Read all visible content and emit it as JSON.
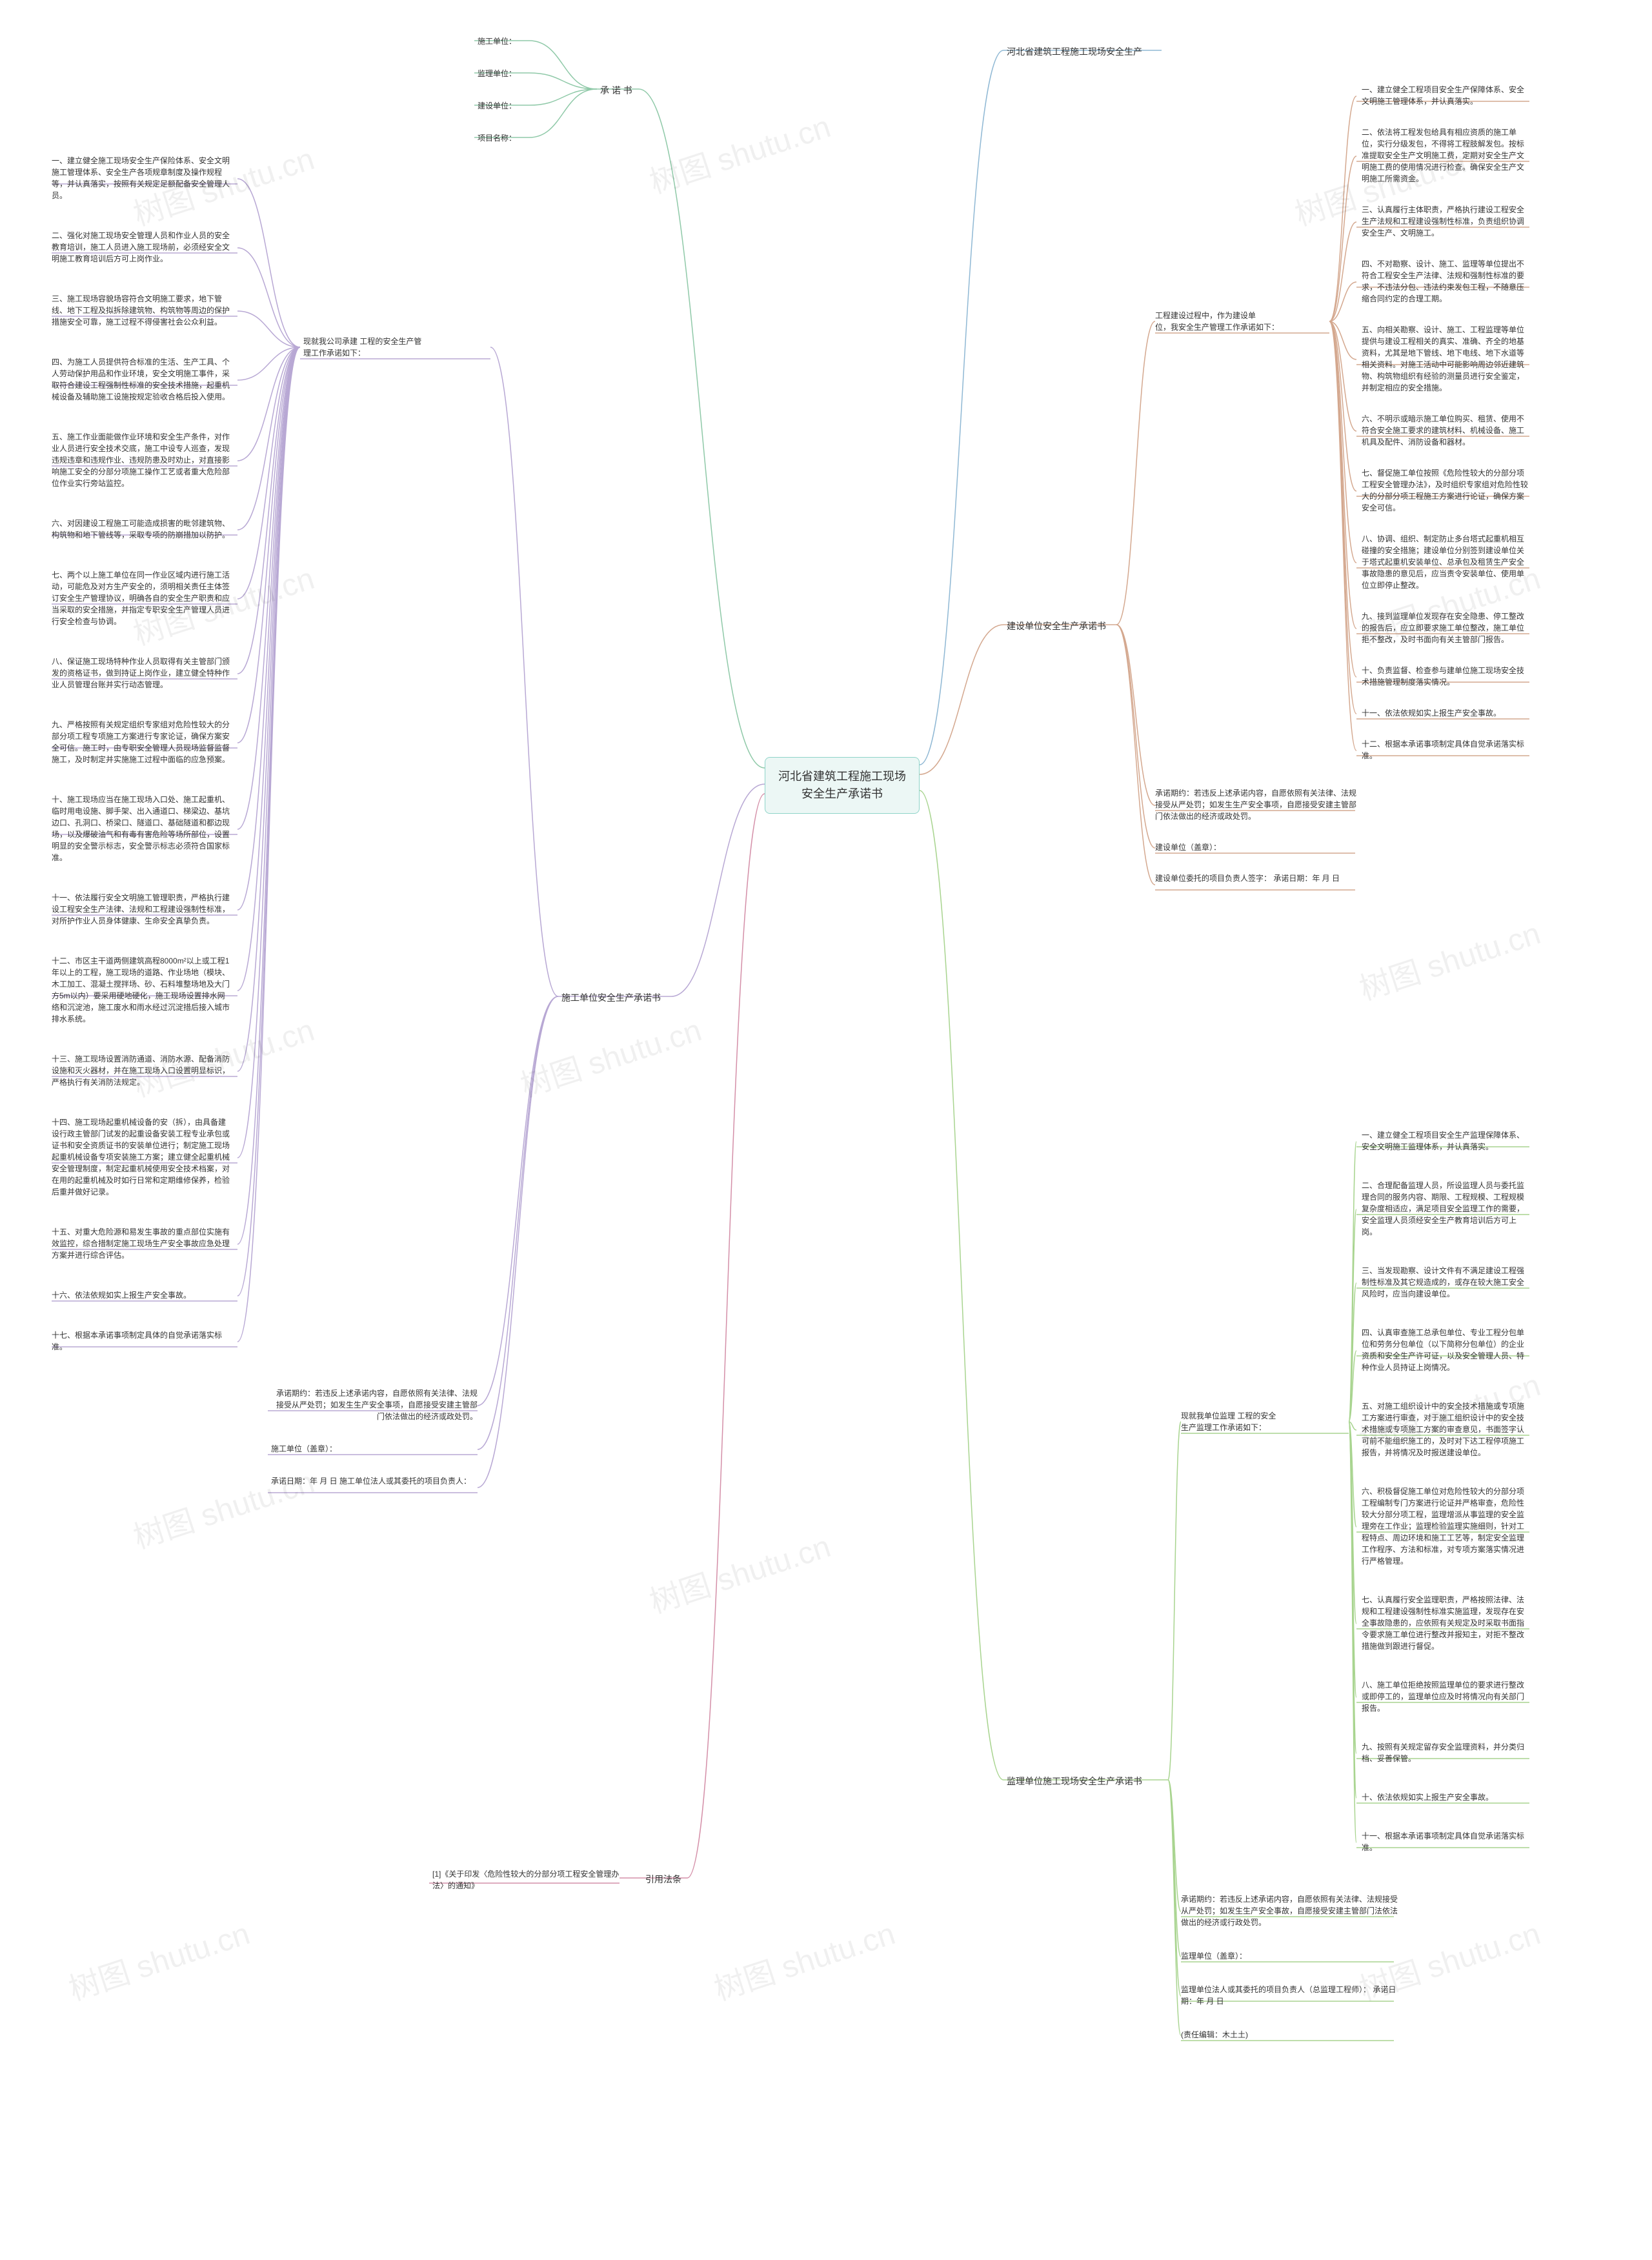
{
  "colors": {
    "bg": "#ffffff",
    "centerBg": "#ecf7f5",
    "centerBorder": "#8fd4c9",
    "text": "#333333",
    "line1": "#8fc9a8",
    "line2": "#8fb8d4",
    "line3": "#d4a88f",
    "line4": "#b8a8d4",
    "line5": "#d48fa8",
    "line6": "#a8d48f",
    "watermark": "rgba(0,0,0,0.06)"
  },
  "center": {
    "line1": "河北省建筑工程施工现场",
    "line2": "安全生产承诺书"
  },
  "watermarkText": "树图 shutu.cn",
  "b1": {
    "title": "承 诺 书",
    "c": [
      "施工单位：",
      "监理单位：",
      "建设单位：",
      "项目名称："
    ]
  },
  "b2": {
    "title": "河北省建筑工程施工现场安全生产"
  },
  "b3": {
    "title": "建设单位安全生产承诺书",
    "headLabelA": "          工程建设过程中，作为建设单",
    "headLabelB": "位，我安全生产管理工作承诺如下：",
    "c": [
      "一、建立健全工程项目安全生产保障体系、安全文明施工管理体系，并认真落实。",
      "二、依法将工程发包给具有相应资质的施工单位，实行分级发包，不得将工程肢解发包。按标准提取安全生产文明施工费，定期对安全生产文明施工费的使用情况进行检查。确保安全生产文明施工所需资金。",
      "三、认真履行主体职责，严格执行建设工程安全生产法规和工程建设强制性标准，负责组织协调安全生产、文明施工。",
      "四、不对勘察、设计、施工、监理等单位提出不符合工程安全生产法律、法规和强制性标准的要求，不违法分包、违法约束发包工程，不随意压缩合同约定的合理工期。",
      "五、向相关勘察、设计、施工、工程监理等单位提供与建设工程相关的真实、准确、齐全的地基资料，尤其是地下管线、地下电线、地下水道等相关资料。对施工活动中可能影响周边邻近建筑物、构筑物组织有经验的测量员进行安全鉴定，并制定相应的安全措施。",
      "六、不明示或暗示施工单位购买、租赁、使用不符合安全施工要求的建筑材料、机械设备、施工机具及配件、消防设备和器材。",
      "七、督促施工单位按照《危险性较大的分部分项工程安全管理办法》，及时组织专家组对危险性较大的分部分项工程施工方案进行论证，确保方案安全可信。",
      "八、协调、组织、制定防止多台塔式起重机相互碰撞的安全措施；建设单位分别签到建设单位关于塔式起重机安装单位、总承包及租赁生产安全事故隐患的意见后，应当责令安装单位、使用单位立即停止整改。",
      "九、接到监理单位发现存在安全隐患、停工整改的报告后，应立即要求施工单位整改，施工单位拒不整改，及时书面向有关主管部门报告。",
      "十、负责监督、检查参与建单位施工现场安全技术措施管理制度落实情况。",
      "十一、依法依规如实上报生产安全事故。",
      "十二、根据本承诺事项制定具体自觉承诺落实标准。"
    ],
    "tail": [
      "承诺期约：若违反上述承诺内容，自愿依照有关法律、法规接受从严处罚；如发生生产安全事项，自愿接受安建主管部门依法做出的经济或政处罚。",
      "建设单位（盖章）：",
      "建设单位委托的项目负责人签字：          承诺日期：年 月 日"
    ]
  },
  "b4": {
    "title": "施工单位安全生产承诺书",
    "headLabelA": "现就我公司承建              工程的安全生产管",
    "headLabelB": "理工作承诺如下：",
    "c": [
      "一、建立健全施工现场安全生产保险体系、安全文明施工管理体系、安全生产各项规章制度及操作规程等，并认真落实，按照有关规定足额配备安全管理人员。",
      "二、强化对施工现场安全管理人员和作业人员的安全教育培训，施工人员进入施工现场前，必须经安全文明施工教育培训后方可上岗作业。",
      "三、施工现场容貌场容符合文明施工要求，地下管线、地下工程及拟拆除建筑物、构筑物等周边的保护措施安全可靠，施工过程不得侵害社会公众利益。",
      "四、为施工人员提供符合标准的生活、生产工具、个人劳动保护用品和作业环境，安全文明施工事件，采取符合建设工程强制性标准的安全技术措施，起重机械设备及辅助施工设施按规定验收合格后投入使用。",
      "五、施工作业面能做作业环境和安全生产条件，对作业人员进行安全技术交底，施工中设专人巡查，发现违规违章和违规作业、违规防患及时劝止，对直接影响施工安全的分部分项施工操作工艺或者重大危险部位作业实行旁站监控。",
      "六、对因建设工程施工可能造成损害的毗邻建筑物、构筑物和地下管线等，采取专项的防崩措加以防护。",
      "七、两个以上施工单位在同一作业区域内进行施工活动，可能危及对方生产安全的，须明相关责任主体签订安全生产管理协议，明确各自的安全生产职责和应当采取的安全措施，并指定专职安全生产管理人员进行安全检查与协调。",
      "八、保证施工现场特种作业人员取得有关主管部门颁发的资格证书，做到持证上岗作业，建立健全特种作业人员管理台账并实行动态管理。",
      "九、严格按照有关规定组织专家组对危险性较大的分部分项工程专项施工方案进行专家论证，确保方案安全可信。施工时，由专职安全管理人员现场监督监督施工，及时制定并实施施工过程中面临的应急预案。",
      "十、施工现场应当在施工现场入口处、施工起重机、临时用电设施、脚手架、出入通道口、梯梁边、基坑边口、孔洞口、桥梁口、隧道口、基础隧道和都边现场，以及爆破油气和有毒有害危险等场所部位，设置明显的安全警示标志，安全警示标志必须符合国家标准。",
      "十一、依法履行安全文明施工管理职责，严格执行建设工程安全生产法律、法规和工程建设强制性标准，对所护作业人员身体健康、生命安全真挚负责。",
      "十二、市区主干道两侧建筑高程8000m²以上或工程1年以上的工程，施工现场的道路、作业场地（模块、木工加工、混凝土搅拌场、砂、石料堆整场地及大门方5m以内）要采用硬地硬化，施工现场设置排水网络和沉淀池，施工废水和雨水经过沉淀措后接入城市排水系统。",
      "十三、施工现场设置消防通道、消防水源、配备消防设施和灭火器材，并在施工现场入口设置明显标识，严格执行有关消防法规定。",
      "十四、施工现场起重机械设备的安（拆），由具备建设行政主管部门试发的起重设备安装工程专业承包或证书和安全资质证书的安装单位进行；制定施工现场起重机械设备专项安装施工方案；建立健全起重机械安全管理制度，制定起重机械使用安全技术档案，对在用的起重机械及时如行日常和定期维修保养，检验后重并做好记录。",
      "十五、对重大危险源和易发生事故的重点部位实施有效监控，综合措制定施工现场生产安全事故应急处理方案并进行综合评估。",
      "十六、依法依规如实上报生产安全事故。",
      "十七、根据本承诺事项制定具体的自觉承诺落实标准。"
    ],
    "tail": [
      "承诺期约：若违反上述承诺内容，自愿依照有关法律、法规接受从严处罚；如发生生产安全事项，自愿接受安建主管部门依法做出的经济或政处罚。",
      "施工单位（盖章）：",
      "承诺日期：年 月 日    施工单位法人或其委托的项目负责人："
    ]
  },
  "b5": {
    "title": "引用法条",
    "c": [
      "[1]《关于印发〈危险性较大的分部分项工程安全管理办法〉的通知》"
    ]
  },
  "b6": {
    "title": "监理单位施工现场安全生产承诺书",
    "headLabelA": "现就我单位监理              工程的安全",
    "headLabelB": "生产监理工作承诺如下：",
    "c": [
      "一、建立健全工程项目安全生产监理保障体系、安全文明施工监理体系，并认真落实。",
      "二、合理配备监理人员，所设监理人员与委托监理合同的服务内容、期限、工程规模、工程规模复杂度相适应，满足项目安全监理工作的需要，安全监理人员须经安全生产教育培训后方可上岗。",
      "三、当发现勘察、设计文件有不满足建设工程强制性标准及其它规造成的，或存在较大施工安全风险时，应当向建设单位。",
      "四、认真审查施工总承包单位、专业工程分包单位和劳务分包单位（以下简称分包单位）的企业资质和安全生产许可证，以及安全管理人员、特种作业人员持证上岗情况。",
      "五、对施工组织设计中的安全技术措施或专项施工方案进行审查，对于施工组织设计中的安全技术措施或专项施工方案的审查意见，书面签字认可前不能组织施工的，及时对下达工程停项施工报告，并将情况及时报送建设单位。",
      "六、积极督促施工单位对危险性较大的分部分项工程编制专门方案进行论证并严格审查，危险性较大分部分项工程，监理增派从事监理的安全监理旁在工作业；监理检验监理实施细则，针对工程特点、周边环境和施工工艺等，制定安全监理工作程序、方法和标准，对专项方案落实情况进行严格管理。",
      "七、认真履行安全监理职责，严格按照法律、法规和工程建设强制性标准实施监理，发现存在安全事故隐患的，应依照有关规定及时采取书面指令要求施工单位进行整改并报知主，对拒不整改措施做到跟进行督促。",
      "八、施工单位拒绝按照监理单位的要求进行整改或即停工的，监理单位应及时将情况向有关部门报告。",
      "九、按照有关规定留存安全监理资料，并分类归档、妥善保管。",
      "十、依法依规如实上报生产安全事故。",
      "十一、根据本承诺事项制定具体自觉承诺落实标准。"
    ],
    "tail": [
      "承诺期约：若违反上述承诺内容，自愿依照有关法律、法规接受从严处罚；如发生生产安全事故，自愿接受安建主管部门法依法做出的经济或行政处罚。",
      "监理单位（盖章）：",
      "监理单位法人或其委托的项目负责人（总监理工程师）：          承诺日期：年 月 日",
      "(责任编辑：木土土)"
    ]
  }
}
